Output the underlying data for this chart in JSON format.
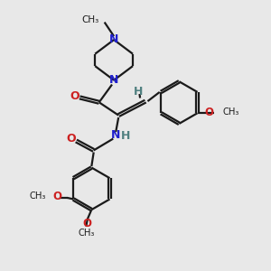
{
  "background_color": "#e8e8e8",
  "bond_color": "#1a1a1a",
  "N_color": "#2020cc",
  "O_color": "#cc2020",
  "H_color": "#508080",
  "figsize": [
    3.0,
    3.0
  ],
  "dpi": 100,
  "xlim": [
    0,
    10
  ],
  "ylim": [
    0,
    10
  ]
}
